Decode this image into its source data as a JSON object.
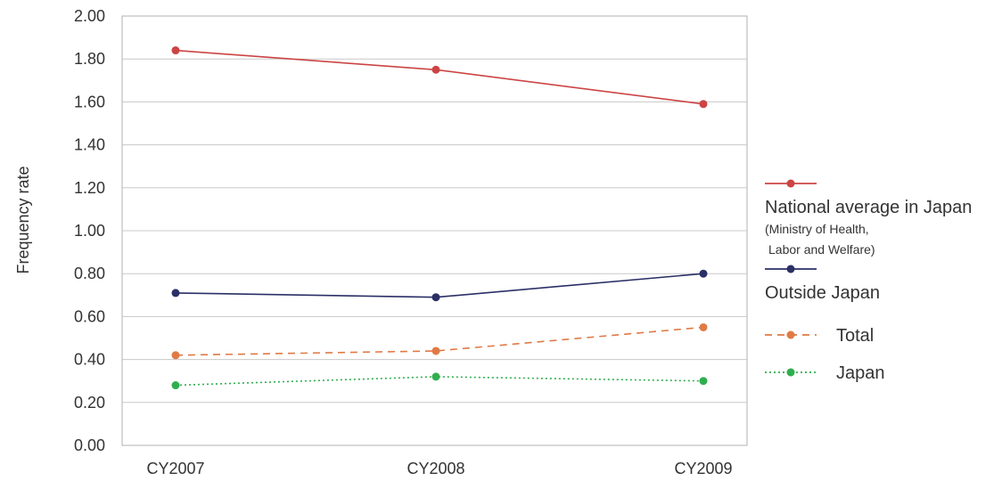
{
  "chart_data": {
    "type": "line",
    "title": "",
    "xlabel": "",
    "ylabel": "Frequency rate",
    "categories": [
      "CY2007",
      "CY2008",
      "CY2009"
    ],
    "ylim": [
      0,
      2.0
    ],
    "yticks": [
      "0.00",
      "0.20",
      "0.40",
      "0.60",
      "0.80",
      "1.00",
      "1.20",
      "1.40",
      "1.60",
      "1.80",
      "2.00"
    ],
    "grid": true,
    "legend_position": "right",
    "series": [
      {
        "name": "National average in Japan",
        "name_note": [
          "(Ministry of Health,",
          "Labor and Welfare)"
        ],
        "values": [
          1.84,
          1.75,
          1.59
        ],
        "color": "#cc4444",
        "style": "solid"
      },
      {
        "name": "Outside Japan",
        "values": [
          0.71,
          0.69,
          0.8
        ],
        "color": "#2a2f66",
        "style": "solid"
      },
      {
        "name": "Total",
        "values": [
          0.42,
          0.44,
          0.55
        ],
        "color": "#e07a45",
        "style": "dashed"
      },
      {
        "name": "Japan",
        "values": [
          0.28,
          0.32,
          0.3
        ],
        "color": "#2fae4e",
        "style": "dotted"
      }
    ]
  }
}
